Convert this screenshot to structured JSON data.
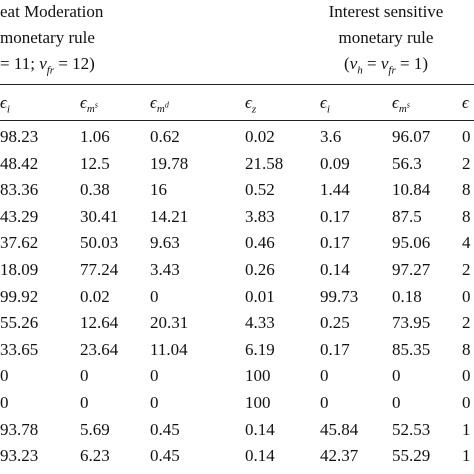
{
  "table": {
    "group_headers": [
      {
        "lines": [
          [
            {
              "t": "eat Moderation"
            }
          ],
          [
            {
              "t": "monetary rule"
            }
          ],
          [
            {
              "t": "= 11; "
            },
            {
              "i": "ν"
            },
            {
              "sub": "fr"
            },
            {
              "t": " = 12)"
            }
          ]
        ]
      },
      {
        "lines": [
          [
            {
              "t": "Interest sensitive"
            }
          ],
          [
            {
              "t": "monetary rule"
            }
          ],
          [
            {
              "t": "("
            },
            {
              "i": "ν"
            },
            {
              "sub": "h"
            },
            {
              "t": " = "
            },
            {
              "i": "ν"
            },
            {
              "sub": "fr"
            },
            {
              "t": " = 1)"
            }
          ]
        ]
      }
    ],
    "columns": [
      {
        "base": "ϵ",
        "sub": "i"
      },
      {
        "base": "ϵ",
        "sub": "m",
        "sup": "s"
      },
      {
        "base": "ϵ",
        "sub": "m",
        "sup": "d"
      },
      {
        "base": "ϵ",
        "sub": "z"
      },
      {
        "base": "ϵ",
        "sub": "i"
      },
      {
        "base": "ϵ",
        "sub": "m",
        "sup": "s"
      },
      {
        "base": "ϵ"
      }
    ],
    "rows": [
      [
        "98.23",
        "1.06",
        "0.62",
        "0.02",
        "3.6",
        "96.07",
        "0"
      ],
      [
        "48.42",
        "12.5",
        "19.78",
        "21.58",
        "0.09",
        "56.3",
        "2"
      ],
      [
        "83.36",
        "0.38",
        "16",
        "0.52",
        "1.44",
        "10.84",
        "8"
      ],
      [
        "43.29",
        "30.41",
        "14.21",
        "3.83",
        "0.17",
        "87.5",
        "8"
      ],
      [
        "37.62",
        "50.03",
        "9.63",
        "0.46",
        "0.17",
        "95.06",
        "4"
      ],
      [
        "18.09",
        "77.24",
        "3.43",
        "0.26",
        "0.14",
        "97.27",
        "2"
      ],
      [
        "99.92",
        "0.02",
        "0",
        "0.01",
        "99.73",
        "0.18",
        "0"
      ],
      [
        "55.26",
        "12.64",
        "20.31",
        "4.33",
        "0.25",
        "73.95",
        "2"
      ],
      [
        "33.65",
        "23.64",
        "11.04",
        "6.19",
        "0.17",
        "85.35",
        "8"
      ],
      [
        "0",
        "0",
        "0",
        "100",
        "0",
        "0",
        "0"
      ],
      [
        "0",
        "0",
        "0",
        "100",
        "0",
        "0",
        "0"
      ],
      [
        "93.78",
        "5.69",
        "0.45",
        "0.14",
        "45.84",
        "52.53",
        "1"
      ],
      [
        "93.23",
        "6.23",
        "0.45",
        "0.14",
        "42.37",
        "55.29",
        "1"
      ]
    ]
  }
}
